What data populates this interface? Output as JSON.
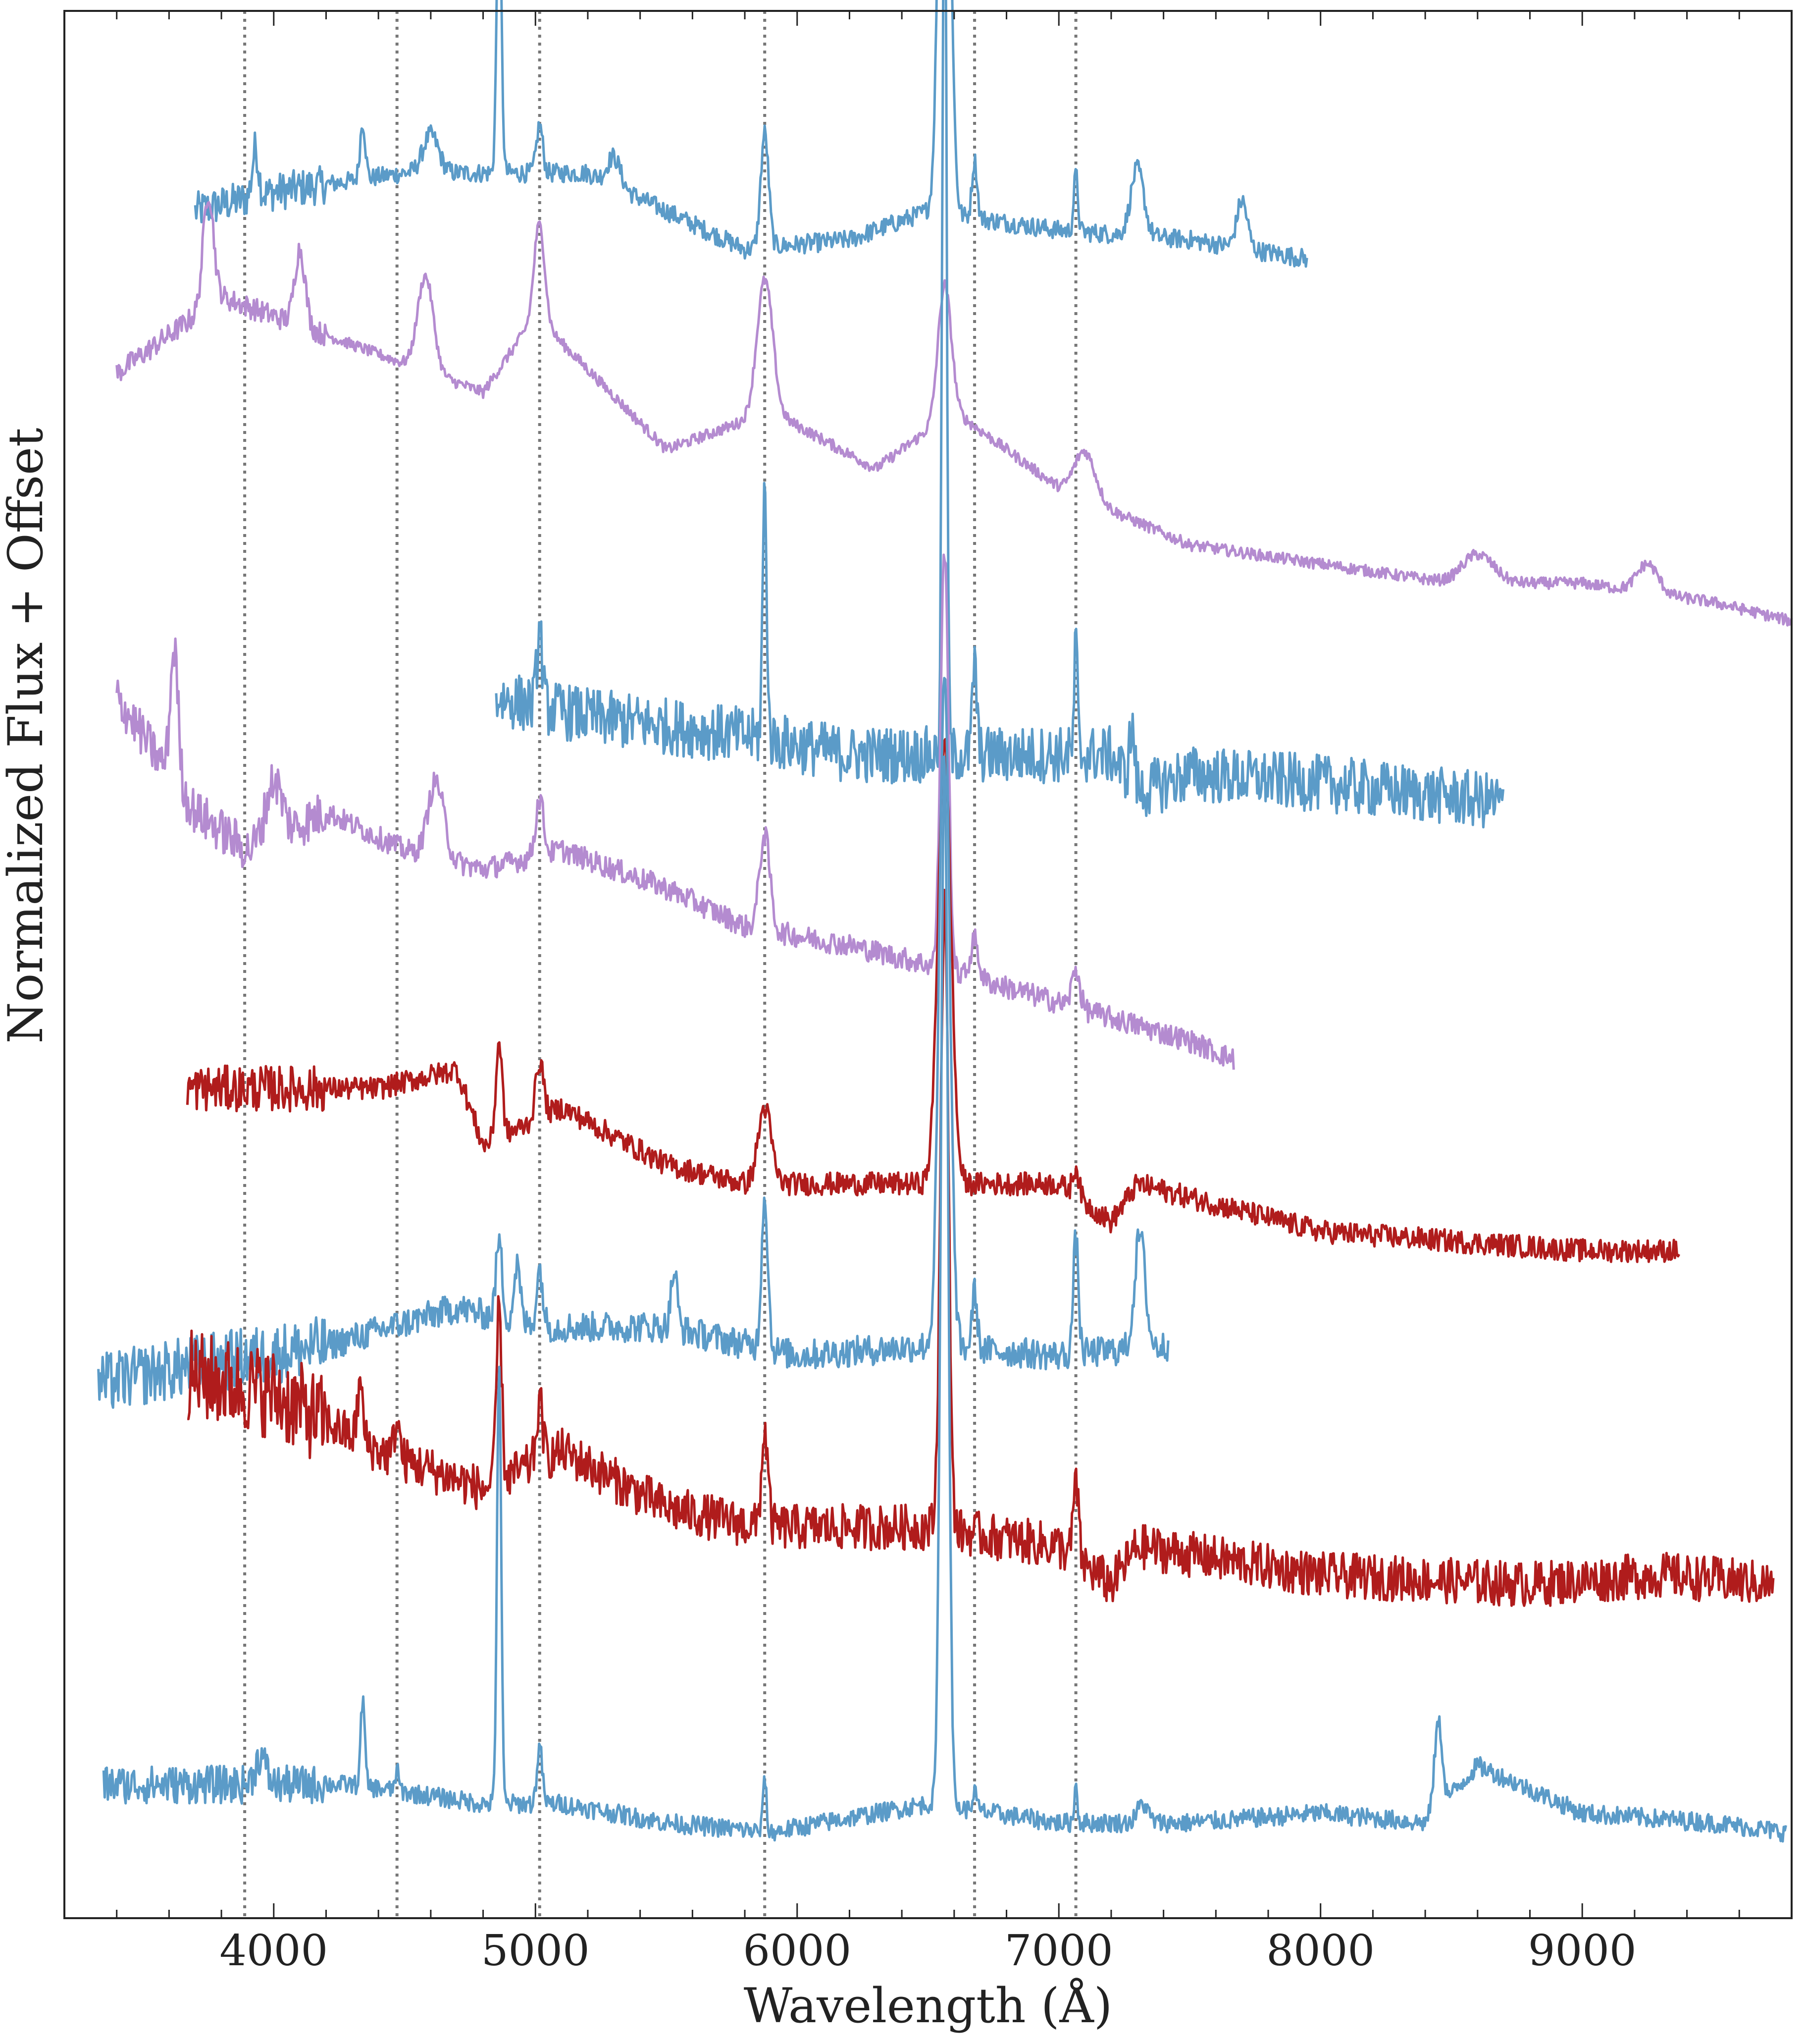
{
  "chart_data": {
    "type": "line",
    "xlabel": "Wavelength (Å)",
    "ylabel": "Normalized Flux + Offset",
    "xlim": [
      3200,
      9800
    ],
    "ylim": [
      0,
      10
    ],
    "x_ticks": [
      4000,
      5000,
      6000,
      7000,
      8000,
      9000
    ],
    "x_tick_labels": [
      "4000",
      "5000",
      "6000",
      "7000",
      "8000",
      "9000"
    ],
    "y_tick_labels": false,
    "grid": false,
    "legend": "none",
    "reference_lines": [
      3889,
      4471,
      5016,
      5876,
      6678,
      7065
    ],
    "colors": {
      "blue": "#5b9bc8",
      "purple": "#b48bd0",
      "red": "#b01c1c",
      "reference": "#777777",
      "axes": "#222222"
    },
    "series": [
      {
        "color": "blue",
        "offset": 8.75,
        "noise": 0.05,
        "continuum": [
          [
            3700,
            0.2
          ],
          [
            4000,
            0.3
          ],
          [
            4500,
            0.4
          ],
          [
            5200,
            0.4
          ],
          [
            5800,
            0.0
          ],
          [
            6200,
            0.05
          ],
          [
            6500,
            0.2
          ],
          [
            7000,
            0.1
          ],
          [
            7500,
            0.05
          ],
          [
            7950,
            -0.05
          ]
        ],
        "lines": [
          [
            3930,
            0.25,
            12
          ],
          [
            4340,
            0.3,
            10
          ],
          [
            4600,
            0.2,
            30
          ],
          [
            4861,
            1.5,
            9
          ],
          [
            5016,
            0.25,
            12
          ],
          [
            5300,
            0.15,
            25
          ],
          [
            5876,
            0.6,
            15
          ],
          [
            6563,
            3.5,
            20
          ],
          [
            6678,
            0.3,
            10
          ],
          [
            7065,
            0.3,
            8
          ],
          [
            7300,
            0.35,
            25
          ],
          [
            7700,
            0.25,
            20
          ]
        ]
      },
      {
        "color": "purple",
        "offset": 7.6,
        "noise": 0.03,
        "continuum": [
          [
            3400,
            0.5
          ],
          [
            3800,
            0.9
          ],
          [
            4200,
            0.7
          ],
          [
            4800,
            0.4
          ],
          [
            5000,
            0.8
          ],
          [
            5500,
            0.1
          ],
          [
            5900,
            0.3
          ],
          [
            6300,
            0.0
          ],
          [
            6600,
            0.3
          ],
          [
            7000,
            -0.1
          ],
          [
            7500,
            -0.4
          ],
          [
            8000,
            -0.5
          ],
          [
            8500,
            -0.6
          ],
          [
            9000,
            -0.6
          ],
          [
            9500,
            -0.7
          ],
          [
            9800,
            -0.8
          ]
        ],
        "lines": [
          [
            3750,
            0.6,
            20
          ],
          [
            4100,
            0.4,
            20
          ],
          [
            4580,
            0.5,
            30
          ],
          [
            5016,
            0.5,
            20
          ],
          [
            5876,
            0.7,
            30
          ],
          [
            6563,
            0.7,
            25
          ],
          [
            7100,
            0.25,
            40
          ],
          [
            8600,
            0.15,
            60
          ],
          [
            9250,
            0.15,
            40
          ]
        ]
      },
      {
        "color": "blue",
        "offset": 6.1,
        "noise": 0.15,
        "continuum": [
          [
            4850,
            0.3
          ],
          [
            5200,
            0.2
          ],
          [
            5800,
            0.1
          ],
          [
            6200,
            0.0
          ],
          [
            6600,
            0.0
          ],
          [
            7200,
            0.0
          ],
          [
            7300,
            -0.2
          ],
          [
            7500,
            -0.1
          ],
          [
            8000,
            -0.15
          ],
          [
            8700,
            -0.25
          ]
        ],
        "lines": [
          [
            5016,
            0.4,
            10
          ],
          [
            5876,
            1.3,
            8
          ],
          [
            6563,
            5.0,
            8
          ],
          [
            6678,
            0.5,
            8
          ],
          [
            7065,
            0.6,
            6
          ],
          [
            7280,
            0.3,
            10
          ]
        ]
      },
      {
        "color": "purple",
        "offset": 5.4,
        "noise": 0.06,
        "continuum": [
          [
            3400,
            1.0
          ],
          [
            3700,
            0.4
          ],
          [
            3900,
            0.2
          ],
          [
            4200,
            0.4
          ],
          [
            4500,
            0.2
          ],
          [
            4800,
            0.1
          ],
          [
            5100,
            0.2
          ],
          [
            5500,
            0.0
          ],
          [
            5800,
            -0.2
          ],
          [
            6200,
            -0.3
          ],
          [
            6500,
            -0.4
          ],
          [
            7000,
            -0.6
          ],
          [
            7500,
            -0.8
          ],
          [
            7670,
            -0.9
          ]
        ],
        "lines": [
          [
            3620,
            0.7,
            15
          ],
          [
            4000,
            0.3,
            30
          ],
          [
            4620,
            0.4,
            30
          ],
          [
            5016,
            0.3,
            15
          ],
          [
            5876,
            0.5,
            20
          ],
          [
            6563,
            2.2,
            15
          ],
          [
            6678,
            0.2,
            15
          ],
          [
            7065,
            0.2,
            15
          ]
        ]
      },
      {
        "color": "red",
        "offset": 4.05,
        "noise": 0.06,
        "continuum": [
          [
            3670,
            0.3
          ],
          [
            4000,
            0.3
          ],
          [
            4400,
            0.3
          ],
          [
            4700,
            0.4
          ],
          [
            4800,
            0.0
          ],
          [
            5100,
            0.2
          ],
          [
            5500,
            -0.1
          ],
          [
            5800,
            -0.2
          ],
          [
            6300,
            -0.2
          ],
          [
            6500,
            -0.2
          ],
          [
            7000,
            -0.2
          ],
          [
            7200,
            -0.4
          ],
          [
            7300,
            -0.2
          ],
          [
            8000,
            -0.45
          ],
          [
            8500,
            -0.5
          ],
          [
            9000,
            -0.55
          ],
          [
            9370,
            -0.55
          ]
        ],
        "lines": [
          [
            4861,
            0.5,
            12
          ],
          [
            5016,
            0.3,
            15
          ],
          [
            5876,
            0.4,
            25
          ],
          [
            6563,
            2.3,
            25
          ],
          [
            7065,
            0.15,
            12
          ]
        ]
      },
      {
        "color": "blue",
        "offset": 3.0,
        "noise": 0.08,
        "continuum": [
          [
            3330,
            -0.2
          ],
          [
            3700,
            -0.1
          ],
          [
            4200,
            0.0
          ],
          [
            4700,
            0.2
          ],
          [
            5000,
            0.1
          ],
          [
            5500,
            0.1
          ],
          [
            6000,
            -0.05
          ],
          [
            6500,
            0.0
          ],
          [
            7000,
            -0.05
          ],
          [
            7420,
            0.0
          ]
        ],
        "lines": [
          [
            4861,
            0.4,
            12
          ],
          [
            4930,
            0.3,
            12
          ],
          [
            5016,
            0.3,
            12
          ],
          [
            5530,
            0.3,
            12
          ],
          [
            5876,
            0.8,
            12
          ],
          [
            6563,
            3.5,
            20
          ],
          [
            6678,
            0.3,
            10
          ],
          [
            7065,
            0.6,
            10
          ],
          [
            7310,
            0.6,
            20
          ]
        ]
      },
      {
        "color": "red",
        "offset": 2.45,
        "noise": 0.12,
        "continuum": [
          [
            3670,
            0.4
          ],
          [
            4000,
            0.3
          ],
          [
            4400,
            0.0
          ],
          [
            4800,
            -0.2
          ],
          [
            5100,
            0.0
          ],
          [
            5500,
            -0.3
          ],
          [
            5850,
            -0.4
          ],
          [
            6500,
            -0.4
          ],
          [
            7000,
            -0.5
          ],
          [
            7200,
            -0.7
          ],
          [
            7300,
            -0.5
          ],
          [
            8000,
            -0.65
          ],
          [
            8800,
            -0.7
          ],
          [
            9300,
            -0.65
          ],
          [
            9730,
            -0.7
          ]
        ],
        "lines": [
          [
            4330,
            0.3,
            10
          ],
          [
            4471,
            0.2,
            10
          ],
          [
            4861,
            0.9,
            10
          ],
          [
            5016,
            0.3,
            12
          ],
          [
            5876,
            0.5,
            12
          ],
          [
            6563,
            3.3,
            15
          ],
          [
            7065,
            0.4,
            10
          ]
        ]
      },
      {
        "color": "blue",
        "offset": 0.6,
        "noise": 0.05,
        "continuum": [
          [
            3350,
            0.1
          ],
          [
            3900,
            0.1
          ],
          [
            4300,
            0.1
          ],
          [
            4800,
            0.0
          ],
          [
            5100,
            0.0
          ],
          [
            5500,
            -0.1
          ],
          [
            5900,
            -0.15
          ],
          [
            6300,
            -0.05
          ],
          [
            6500,
            0.0
          ],
          [
            7000,
            -0.1
          ],
          [
            7500,
            -0.1
          ],
          [
            8000,
            -0.05
          ],
          [
            8400,
            -0.1
          ],
          [
            8600,
            0.2
          ],
          [
            9000,
            -0.05
          ],
          [
            9500,
            -0.1
          ],
          [
            9780,
            -0.15
          ]
        ],
        "lines": [
          [
            3950,
            0.15,
            20
          ],
          [
            4340,
            0.45,
            8
          ],
          [
            4471,
            0.1,
            8
          ],
          [
            4861,
            2.3,
            8
          ],
          [
            5016,
            0.3,
            10
          ],
          [
            5876,
            0.3,
            6
          ],
          [
            6563,
            5.5,
            14
          ],
          [
            6678,
            0.1,
            8
          ],
          [
            7065,
            0.2,
            6
          ],
          [
            7320,
            0.1,
            20
          ],
          [
            8450,
            0.45,
            15
          ]
        ]
      }
    ]
  }
}
